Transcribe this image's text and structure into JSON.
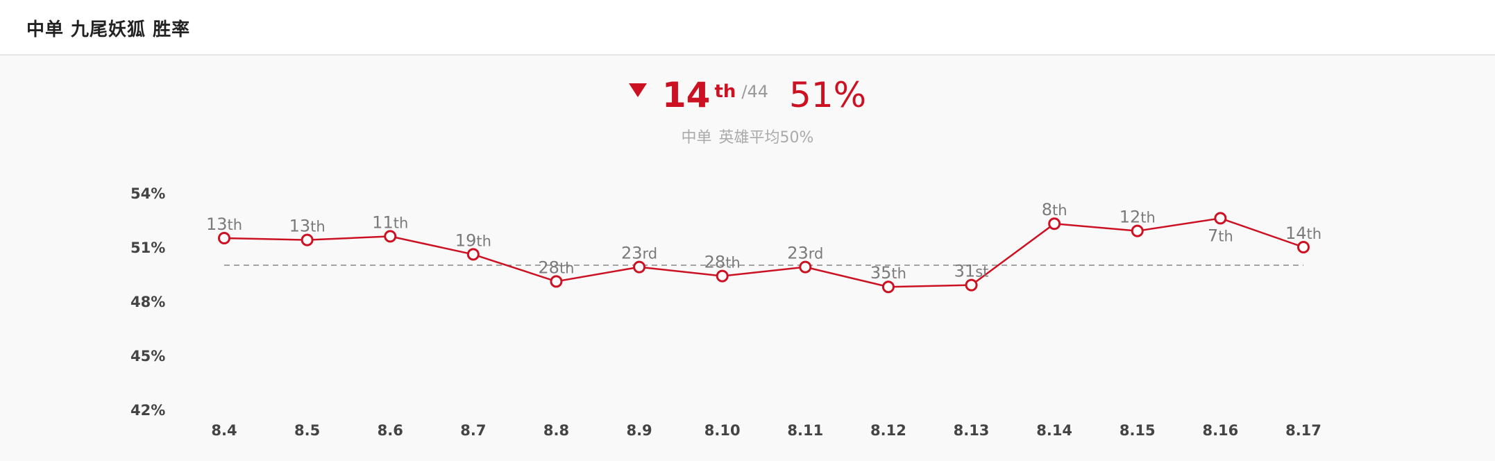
{
  "header": {
    "title": "中单 九尾妖狐 胜率"
  },
  "summary": {
    "trend_icon": "triangle-down-icon",
    "rank": "14",
    "rank_suffix": "th",
    "rank_total": "/44",
    "win_rate": "51%",
    "role_label": "中单",
    "average_label": "英雄平均50%"
  },
  "colors": {
    "accent": "#cc1122",
    "axis_text": "#444444",
    "rank_text": "#7a7a7a",
    "reference_line": "#888888",
    "background": "#f9f9f9"
  },
  "chart_data": {
    "type": "line",
    "categories": [
      "8.4",
      "8.5",
      "8.6",
      "8.7",
      "8.8",
      "8.9",
      "8.10",
      "8.11",
      "8.12",
      "8.13",
      "8.14",
      "8.15",
      "8.16",
      "8.17"
    ],
    "series": [
      {
        "values": [
          51.5,
          51.4,
          51.6,
          50.6,
          49.1,
          49.9,
          49.4,
          49.9,
          48.8,
          48.9,
          52.3,
          51.9,
          52.6,
          51.0
        ],
        "point_labels": [
          {
            "num": "13",
            "suffix": "th",
            "placement": "above"
          },
          {
            "num": "13",
            "suffix": "th",
            "placement": "above"
          },
          {
            "num": "11",
            "suffix": "th",
            "placement": "above"
          },
          {
            "num": "19",
            "suffix": "th",
            "placement": "above"
          },
          {
            "num": "28",
            "suffix": "th",
            "placement": "above"
          },
          {
            "num": "23",
            "suffix": "rd",
            "placement": "above"
          },
          {
            "num": "28",
            "suffix": "th",
            "placement": "above"
          },
          {
            "num": "23",
            "suffix": "rd",
            "placement": "above"
          },
          {
            "num": "35",
            "suffix": "th",
            "placement": "above"
          },
          {
            "num": "31",
            "suffix": "st",
            "placement": "above"
          },
          {
            "num": "8",
            "suffix": "th",
            "placement": "above"
          },
          {
            "num": "12",
            "suffix": "th",
            "placement": "above"
          },
          {
            "num": "7",
            "suffix": "th",
            "placement": "below"
          },
          {
            "num": "14",
            "suffix": "th",
            "placement": "above"
          }
        ]
      }
    ],
    "reference_line": {
      "value": 50,
      "style": "dashed"
    },
    "yticks": [
      "42%",
      "45%",
      "48%",
      "51%",
      "54%"
    ],
    "ytick_values": [
      42,
      45,
      48,
      51,
      54
    ],
    "ylim": [
      42,
      54
    ],
    "grid": false,
    "legend": "none"
  }
}
